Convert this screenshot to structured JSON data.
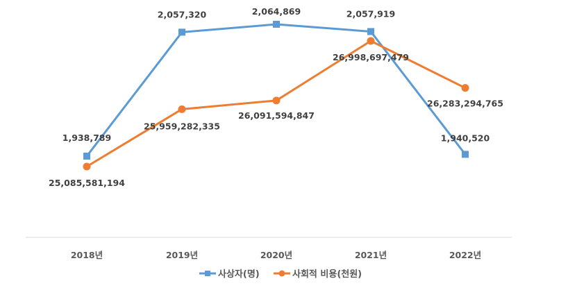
{
  "chart_data": {
    "type": "line",
    "title": "",
    "xlabel": "",
    "ylabel": "",
    "categories": [
      "2018년",
      "2019년",
      "2020년",
      "2021년",
      "2022년"
    ],
    "grid": false,
    "legend_position": "bottom",
    "series": [
      {
        "name": "사상자(명)",
        "color": "#5b9bd5",
        "marker": "square",
        "axis": "left",
        "values": [
          1938789,
          2057320,
          2064869,
          2057919,
          1940520
        ],
        "labels": [
          "1,938,789",
          "2,057,320",
          "2,064,869",
          "2,057,919",
          "1,940,520"
        ]
      },
      {
        "name": "사회적 비용(천원)",
        "color": "#ed7d31",
        "marker": "circle",
        "axis": "right",
        "values": [
          25085581194,
          25959282335,
          26091594847,
          26998697479,
          26283294765
        ],
        "labels": [
          "25,085,581,194",
          "25,959,282,335",
          "26,091,594,847",
          "26,998,697,479",
          "26,283,294,765"
        ]
      }
    ]
  }
}
